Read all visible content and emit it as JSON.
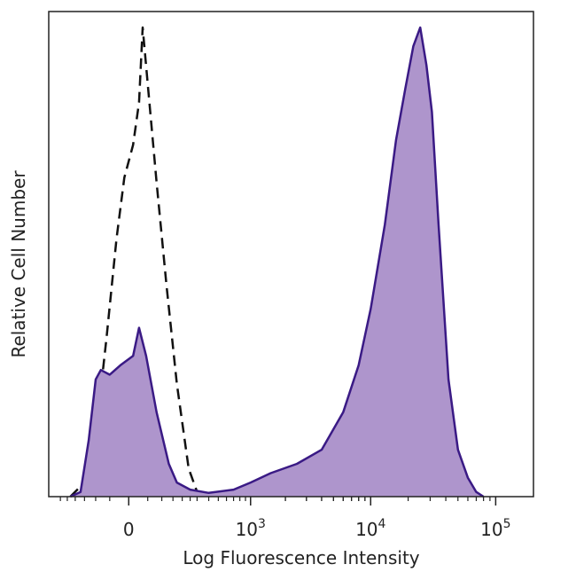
{
  "chart_data": {
    "type": "area",
    "title": "",
    "xlabel": "Log Fluorescence Intensity",
    "ylabel": "Relative Cell Number",
    "x_scale": "biexponential",
    "x_ticks": [
      {
        "value": 0,
        "base": "0",
        "exp": ""
      },
      {
        "value": 1000,
        "base": "10",
        "exp": "3"
      },
      {
        "value": 10000,
        "base": "10",
        "exp": "4"
      },
      {
        "value": 100000,
        "base": "10",
        "exp": "5"
      }
    ],
    "xlim": [
      -400,
      200000
    ],
    "ylim": [
      0,
      100
    ],
    "grid": false,
    "legend": "none",
    "colors": {
      "stained_fill": "#ae95cc",
      "stained_line": "#3a1a85",
      "control_line": "#111111",
      "axis": "#222222"
    },
    "series": [
      {
        "style": "dashed-outline",
        "points": [
          [
            -230,
            0
          ],
          [
            -150,
            3
          ],
          [
            -100,
            13
          ],
          [
            -60,
            34
          ],
          [
            -30,
            55
          ],
          [
            -10,
            68
          ],
          [
            10,
            75
          ],
          [
            25,
            84
          ],
          [
            35,
            100
          ],
          [
            50,
            88
          ],
          [
            80,
            67
          ],
          [
            120,
            45
          ],
          [
            170,
            24
          ],
          [
            240,
            6
          ],
          [
            300,
            1
          ],
          [
            360,
            0
          ]
        ]
      },
      {
        "style": "filled-solid",
        "points": [
          [
            -230,
            0
          ],
          [
            -170,
            1
          ],
          [
            -130,
            12
          ],
          [
            -100,
            25
          ],
          [
            -80,
            27
          ],
          [
            -50,
            26
          ],
          [
            -20,
            28
          ],
          [
            10,
            30
          ],
          [
            25,
            36
          ],
          [
            45,
            30
          ],
          [
            80,
            18
          ],
          [
            130,
            7
          ],
          [
            170,
            3
          ],
          [
            250,
            1.5
          ],
          [
            400,
            0.8
          ],
          [
            700,
            1.5
          ],
          [
            1000,
            3
          ],
          [
            1500,
            5
          ],
          [
            2500,
            7
          ],
          [
            4000,
            10
          ],
          [
            6000,
            18
          ],
          [
            8000,
            28
          ],
          [
            10000,
            40
          ],
          [
            13000,
            58
          ],
          [
            16000,
            76
          ],
          [
            19000,
            87
          ],
          [
            22000,
            96
          ],
          [
            25000,
            100
          ],
          [
            28000,
            92
          ],
          [
            31000,
            82
          ],
          [
            35000,
            58
          ],
          [
            42000,
            25
          ],
          [
            50000,
            10
          ],
          [
            60000,
            4
          ],
          [
            70000,
            1
          ],
          [
            80000,
            0
          ]
        ]
      }
    ]
  }
}
